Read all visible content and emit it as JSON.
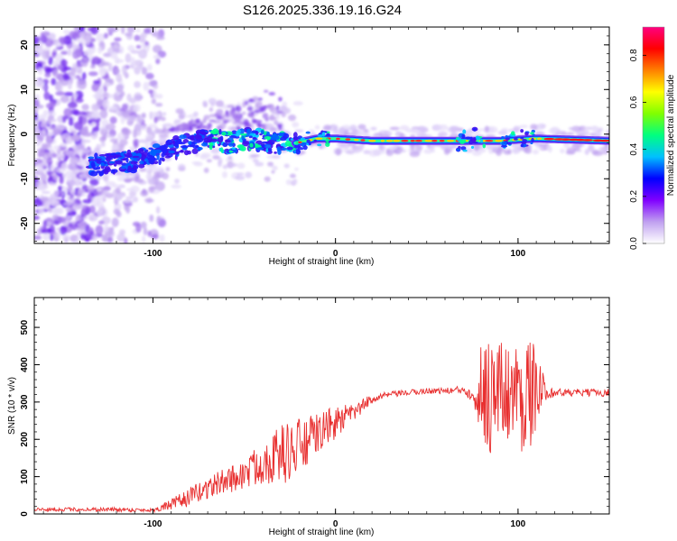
{
  "title": "S126.2025.336.19.16.G24",
  "colors": {
    "line": "#e83030",
    "axis": "#000000",
    "cloud": "#8844ee",
    "spectral_core": "#2a1aff"
  },
  "chart_data": [
    {
      "type": "heatmap",
      "xlabel": "Height of straight line (km)",
      "ylabel": "Frequency (Hz)",
      "xlim": [
        -165,
        150
      ],
      "ylim": [
        -24.5,
        24
      ],
      "x_ticks": [
        -100,
        0,
        100
      ],
      "x_tick_labels": [
        "-100",
        "0",
        "100"
      ],
      "y_ticks": [
        20,
        10,
        0,
        -10,
        -20
      ],
      "y_tick_labels": [
        "20",
        "10",
        "0",
        "-10",
        "-20"
      ],
      "ridge": {
        "description": "dominant spectral ridge (frequency Hz vs height km)",
        "x": [
          -130,
          -110,
          -95,
          -80,
          -70,
          -60,
          -45,
          -35,
          -22,
          -10,
          0,
          20,
          50,
          75,
          90,
          110,
          150
        ],
        "y": [
          -7,
          -6,
          -4,
          -2,
          -1,
          -2,
          -1,
          -2,
          -2,
          -1,
          -1,
          -1.5,
          -1.5,
          -1.5,
          -1.5,
          -1,
          -1.5
        ]
      },
      "colorbar": {
        "label": "Normalized spectral amplitude",
        "range": [
          0,
          0.92
        ],
        "ticks": [
          0.0,
          0.2,
          0.4,
          0.6,
          0.8
        ],
        "tick_labels": [
          "0.0",
          "0.2",
          "0.4",
          "0.6",
          "0.8"
        ],
        "colors": [
          "#ffffff",
          "#c0a0f0",
          "#8000ff",
          "#0000ff",
          "#00c0ff",
          "#00ff80",
          "#80ff00",
          "#ffff00",
          "#ff8000",
          "#ff0000",
          "#ff0080"
        ]
      }
    },
    {
      "type": "line",
      "xlabel": "Height of straight line (km)",
      "ylabel": "SNR (10 * v/v)",
      "xlim": [
        -165,
        150
      ],
      "ylim": [
        0,
        580
      ],
      "x_ticks": [
        -100,
        0,
        100
      ],
      "x_tick_labels": [
        "-100",
        "0",
        "100"
      ],
      "y_ticks": [
        0,
        100,
        200,
        300,
        400,
        500
      ],
      "y_tick_labels": [
        "0",
        "100",
        "200",
        "300",
        "400",
        "500"
      ],
      "series": [
        {
          "name": "SNR",
          "x": [
            -165,
            -150,
            -120,
            -100,
            -90,
            -80,
            -70,
            -60,
            -50,
            -40,
            -30,
            -20,
            -15,
            -10,
            0,
            10,
            20,
            30,
            40,
            50,
            60,
            70,
            75,
            80,
            85,
            90,
            95,
            100,
            105,
            110,
            115,
            120,
            130,
            140,
            150
          ],
          "values": [
            12,
            12,
            12,
            10,
            25,
            45,
            70,
            90,
            105,
            140,
            160,
            175,
            195,
            215,
            245,
            270,
            310,
            320,
            325,
            330,
            330,
            332,
            330,
            330,
            330,
            325,
            330,
            320,
            325,
            330,
            330,
            325,
            325,
            325,
            325
          ],
          "jitter": [
            5,
            5,
            6,
            5,
            15,
            25,
            30,
            35,
            40,
            60,
            80,
            85,
            65,
            55,
            45,
            25,
            12,
            8,
            8,
            8,
            8,
            12,
            30,
            140,
            180,
            150,
            130,
            150,
            170,
            110,
            25,
            12,
            10,
            10,
            10
          ]
        }
      ]
    }
  ]
}
